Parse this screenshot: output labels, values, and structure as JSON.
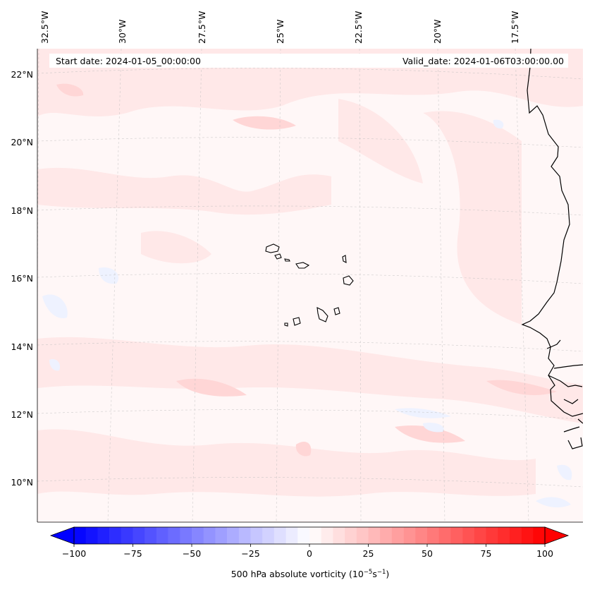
{
  "map": {
    "start_label": "Start date: 2024-01-05_00:00:00",
    "valid_label": "Valid_date: 2024-01-06T03:00:00.00",
    "lon_labels": [
      "32.5°W",
      "30°W",
      "27.5°W",
      "25°W",
      "22.5°W",
      "20°W",
      "17.5°W"
    ],
    "lat_labels": [
      "22°N",
      "20°N",
      "18°N",
      "16°N",
      "14°N",
      "12°N",
      "10°N"
    ],
    "field_colors": {
      "bg": "#fff7f7",
      "pos_light": "#ffe6e6",
      "pos_mid": "#ffd2d2",
      "neg_light": "#eef2ff"
    },
    "coast_color": "#000000"
  },
  "colorbar": {
    "min": -100,
    "max": 100,
    "step": 5,
    "ticks": [
      "−100",
      "−75",
      "−50",
      "−25",
      "0",
      "25",
      "50",
      "75",
      "100"
    ],
    "tick_values": [
      -100,
      -75,
      -50,
      -25,
      0,
      25,
      50,
      75,
      100
    ],
    "label_main": "500 hPa absolute vorticity (10",
    "label_exp1": "−5",
    "label_mid": "s",
    "label_exp2": "−1",
    "label_end": ")",
    "colormap": "bwr"
  }
}
